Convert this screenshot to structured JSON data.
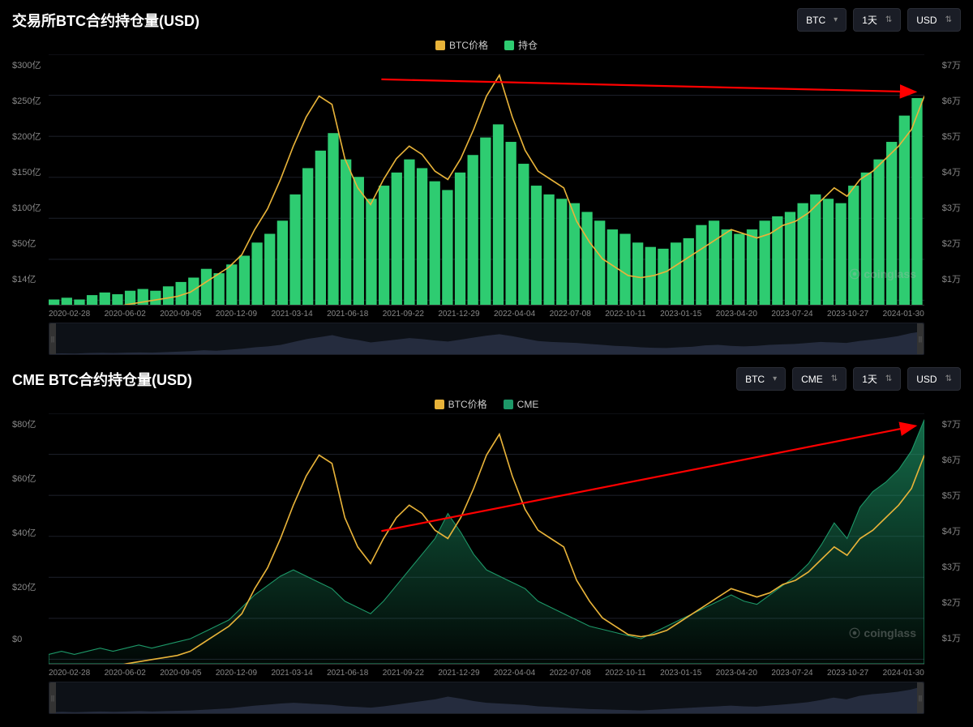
{
  "background_color": "#000000",
  "text_color": "#ffffff",
  "grid_color": "#1a1d26",
  "axis_label_color": "#888888",
  "watermark": "coinglass",
  "chart1": {
    "title": "交易所BTC合约持仓量(USD)",
    "controls": [
      {
        "label": "BTC",
        "icon": "chevron"
      },
      {
        "label": "1天",
        "icon": "updown"
      },
      {
        "label": "USD",
        "icon": "updown"
      }
    ],
    "legend": [
      {
        "label": "BTC价格",
        "color": "#e8b339"
      },
      {
        "label": "持仓",
        "color": "#2ecc71"
      }
    ],
    "type": "combo-bar-line",
    "left_axis_labels": [
      "$300亿",
      "$250亿",
      "$200亿",
      "$150亿",
      "$100亿",
      "$50亿",
      "$14亿"
    ],
    "right_axis_labels": [
      "$7万",
      "$6万",
      "$5万",
      "$4万",
      "$3万",
      "$2万",
      "$1万"
    ],
    "left_ylim": [
      14,
      300
    ],
    "right_ylim": [
      10000,
      70000
    ],
    "x_labels": [
      "2020-02-28",
      "2020-06-02",
      "2020-09-05",
      "2020-12-09",
      "2021-03-14",
      "2021-06-18",
      "2021-09-22",
      "2021-12-29",
      "2022-04-04",
      "2022-07-08",
      "2022-10-11",
      "2023-01-15",
      "2023-04-20",
      "2023-07-24",
      "2023-10-27",
      "2024-01-30"
    ],
    "bars_color": "#2ecc71",
    "line_color": "#e8b339",
    "line_width": 1.5,
    "arrow": {
      "x1_pct": 38,
      "y1_pct": 10,
      "x2_pct": 99,
      "y2_pct": 15,
      "color": "#ff0000"
    },
    "oi_values": [
      20,
      22,
      20,
      25,
      28,
      26,
      30,
      32,
      30,
      35,
      40,
      45,
      55,
      50,
      60,
      70,
      85,
      95,
      110,
      140,
      170,
      190,
      210,
      180,
      160,
      135,
      150,
      165,
      180,
      170,
      155,
      145,
      165,
      185,
      205,
      220,
      200,
      175,
      150,
      140,
      135,
      130,
      120,
      110,
      100,
      95,
      85,
      80,
      78,
      85,
      90,
      105,
      110,
      100,
      95,
      100,
      110,
      115,
      120,
      130,
      140,
      135,
      130,
      150,
      165,
      180,
      200,
      230,
      250
    ],
    "price_values": [
      9000,
      9500,
      8000,
      9000,
      9500,
      9200,
      10000,
      10500,
      11000,
      11500,
      12000,
      13000,
      15000,
      17000,
      19000,
      22000,
      28000,
      33000,
      40000,
      48000,
      55000,
      60000,
      58000,
      45000,
      38000,
      34000,
      40000,
      45000,
      48000,
      46000,
      42000,
      40000,
      45000,
      52000,
      60000,
      65000,
      55000,
      47000,
      42000,
      40000,
      38000,
      30000,
      25000,
      21000,
      19000,
      17000,
      16500,
      17000,
      18000,
      20000,
      22000,
      24000,
      26000,
      28000,
      27000,
      26000,
      27000,
      29000,
      30000,
      32000,
      35000,
      38000,
      36000,
      40000,
      42000,
      45000,
      48000,
      52000,
      60000
    ],
    "title_fontsize": 18,
    "label_fontsize": 11
  },
  "chart2": {
    "title": "CME BTC合约持仓量(USD)",
    "controls": [
      {
        "label": "BTC",
        "icon": "chevron"
      },
      {
        "label": "CME",
        "icon": "updown"
      },
      {
        "label": "1天",
        "icon": "updown"
      },
      {
        "label": "USD",
        "icon": "updown"
      }
    ],
    "legend": [
      {
        "label": "BTC价格",
        "color": "#e8b339"
      },
      {
        "label": "CME",
        "color": "#1d9868"
      }
    ],
    "type": "combo-area-line",
    "left_axis_labels": [
      "$80亿",
      "$60亿",
      "$40亿",
      "$20亿",
      "$0"
    ],
    "right_axis_labels": [
      "$7万",
      "$6万",
      "$5万",
      "$4万",
      "$3万",
      "$2万",
      "$1万"
    ],
    "left_ylim": [
      0,
      80
    ],
    "right_ylim": [
      10000,
      70000
    ],
    "x_labels": [
      "2020-02-28",
      "2020-06-02",
      "2020-09-05",
      "2020-12-09",
      "2021-03-14",
      "2021-06-18",
      "2021-09-22",
      "2021-12-29",
      "2022-04-04",
      "2022-07-08",
      "2022-10-11",
      "2023-01-15",
      "2023-04-20",
      "2023-07-24",
      "2023-10-27",
      "2024-01-30"
    ],
    "area_color": "#1d9868",
    "area_fill_top": "rgba(29,152,104,0.7)",
    "area_fill_bottom": "rgba(29,152,104,0.05)",
    "line_color": "#e8b339",
    "line_width": 1.5,
    "arrow": {
      "x1_pct": 38,
      "y1_pct": 47,
      "x2_pct": 99,
      "y2_pct": 5,
      "color": "#ff0000"
    },
    "cme_values": [
      3,
      4,
      3,
      4,
      5,
      4,
      5,
      6,
      5,
      6,
      7,
      8,
      10,
      12,
      14,
      18,
      22,
      25,
      28,
      30,
      28,
      26,
      24,
      20,
      18,
      16,
      20,
      25,
      30,
      35,
      40,
      48,
      42,
      35,
      30,
      28,
      26,
      24,
      20,
      18,
      16,
      14,
      12,
      11,
      10,
      9,
      8,
      10,
      12,
      14,
      16,
      18,
      20,
      22,
      20,
      19,
      22,
      25,
      28,
      32,
      38,
      45,
      40,
      50,
      55,
      58,
      62,
      68,
      78
    ],
    "price_values": [
      9000,
      9500,
      8000,
      9000,
      9500,
      9200,
      10000,
      10500,
      11000,
      11500,
      12000,
      13000,
      15000,
      17000,
      19000,
      22000,
      28000,
      33000,
      40000,
      48000,
      55000,
      60000,
      58000,
      45000,
      38000,
      34000,
      40000,
      45000,
      48000,
      46000,
      42000,
      40000,
      45000,
      52000,
      60000,
      65000,
      55000,
      47000,
      42000,
      40000,
      38000,
      30000,
      25000,
      21000,
      19000,
      17000,
      16500,
      17000,
      18000,
      20000,
      22000,
      24000,
      26000,
      28000,
      27000,
      26000,
      27000,
      29000,
      30000,
      32000,
      35000,
      38000,
      36000,
      40000,
      42000,
      45000,
      48000,
      52000,
      60000
    ],
    "title_fontsize": 18,
    "label_fontsize": 11
  }
}
